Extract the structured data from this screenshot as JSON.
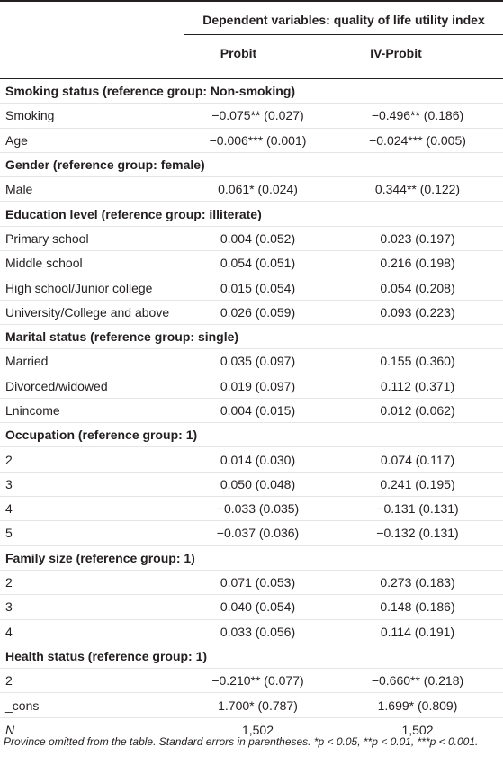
{
  "header": {
    "span_title": "Dependent variables: quality of life utility index",
    "col1": "Probit",
    "col2": "IV-Probit"
  },
  "rows": [
    {
      "type": "section",
      "label": "Smoking status (reference group: Non-smoking)"
    },
    {
      "type": "data",
      "label": "Smoking",
      "probit": "−0.075** (0.027)",
      "ivprobit": "−0.496** (0.186)"
    },
    {
      "type": "data",
      "label": "Age",
      "probit": "−0.006*** (0.001)",
      "ivprobit": "−0.024*** (0.005)"
    },
    {
      "type": "section",
      "label": "Gender (reference group: female)"
    },
    {
      "type": "data",
      "label": "Male",
      "probit": "0.061* (0.024)",
      "ivprobit": "0.344** (0.122)"
    },
    {
      "type": "section",
      "label": "Education level (reference group: illiterate)"
    },
    {
      "type": "data",
      "label": "Primary school",
      "probit": "0.004 (0.052)",
      "ivprobit": "0.023 (0.197)"
    },
    {
      "type": "data",
      "label": "Middle school",
      "probit": "0.054 (0.051)",
      "ivprobit": "0.216 (0.198)"
    },
    {
      "type": "data",
      "label": "High school/Junior college",
      "probit": "0.015 (0.054)",
      "ivprobit": "0.054 (0.208)"
    },
    {
      "type": "data",
      "label": "University/College and above",
      "probit": "0.026 (0.059)",
      "ivprobit": "0.093 (0.223)"
    },
    {
      "type": "section",
      "label": "Marital status (reference group: single)"
    },
    {
      "type": "data",
      "label": "Married",
      "probit": "0.035 (0.097)",
      "ivprobit": "0.155 (0.360)"
    },
    {
      "type": "data",
      "label": "Divorced/widowed",
      "probit": "0.019 (0.097)",
      "ivprobit": "0.112 (0.371)"
    },
    {
      "type": "data",
      "label": "Lnincome",
      "probit": "0.004 (0.015)",
      "ivprobit": "0.012 (0.062)"
    },
    {
      "type": "section",
      "label": "Occupation (reference group: 1)"
    },
    {
      "type": "data",
      "label": "2",
      "probit": "0.014 (0.030)",
      "ivprobit": "0.074 (0.117)"
    },
    {
      "type": "data",
      "label": "3",
      "probit": "0.050 (0.048)",
      "ivprobit": "0.241 (0.195)"
    },
    {
      "type": "data",
      "label": "4",
      "probit": "−0.033 (0.035)",
      "ivprobit": "−0.131 (0.131)"
    },
    {
      "type": "data",
      "label": "5",
      "probit": "−0.037 (0.036)",
      "ivprobit": "−0.132 (0.131)"
    },
    {
      "type": "section",
      "label": "Family size (reference group: 1)"
    },
    {
      "type": "data",
      "label": "2",
      "probit": "0.071 (0.053)",
      "ivprobit": "0.273 (0.183)"
    },
    {
      "type": "data",
      "label": "3",
      "probit": "0.040 (0.054)",
      "ivprobit": "0.148 (0.186)"
    },
    {
      "type": "data",
      "label": "4",
      "probit": "0.033 (0.056)",
      "ivprobit": "0.114 (0.191)"
    },
    {
      "type": "section",
      "label": "Health status (reference group: 1)"
    },
    {
      "type": "data",
      "label": "2",
      "probit": "−0.210** (0.077)",
      "ivprobit": "−0.660** (0.218)"
    },
    {
      "type": "data",
      "label": "_cons",
      "probit": "1.700* (0.787)",
      "ivprobit": "1.699* (0.809)"
    },
    {
      "type": "data",
      "label": "N",
      "italic": true,
      "probit": "1,502",
      "ivprobit": "1,502"
    }
  ],
  "footnote": "Province omitted from the table. Standard errors in parentheses. *p < 0.05, **p < 0.01, ***p < 0.001."
}
